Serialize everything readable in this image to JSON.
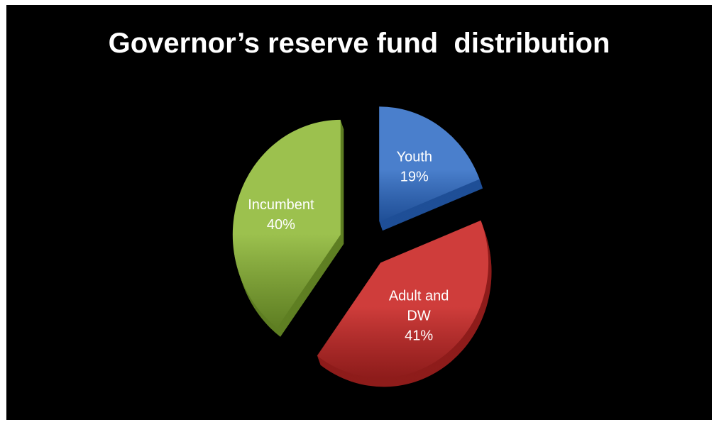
{
  "chart_data": {
    "type": "pie",
    "title": "Governor’s reserve fund  distribution",
    "style": "3d-exploded",
    "slices": [
      {
        "label_lines": [
          "Youth"
        ],
        "value": 19,
        "value_label": "19%",
        "color": "#4a7fcc",
        "dark": "#1f4f97"
      },
      {
        "label_lines": [
          "Adult and",
          "DW"
        ],
        "value": 41,
        "value_label": "41%",
        "color": "#cf3d3b",
        "dark": "#8e1c1b"
      },
      {
        "label_lines": [
          "Incumbent"
        ],
        "value": 40,
        "value_label": "40%",
        "color": "#9cc14e",
        "dark": "#5f7f23"
      }
    ]
  }
}
